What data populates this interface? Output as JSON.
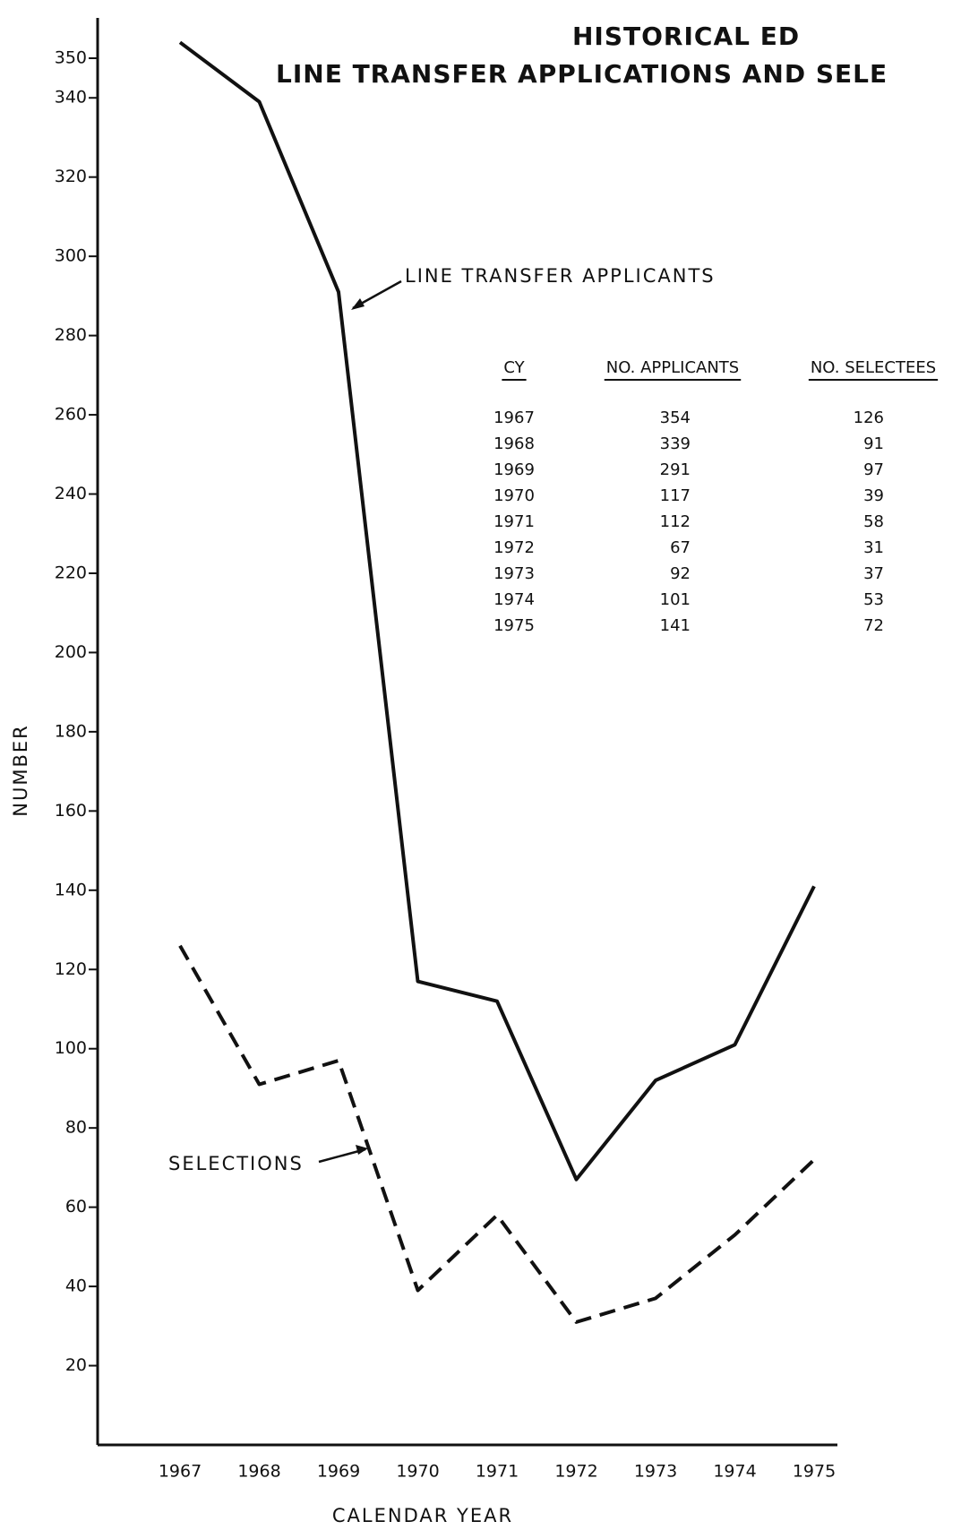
{
  "chart_data": {
    "type": "line",
    "title_lines": [
      "HISTORICAL ED",
      "LINE TRANSFER APPLICATIONS AND SELE"
    ],
    "x_label": "CALENDAR YEAR",
    "y_label": "NUMBER",
    "categories": [
      "1967",
      "1968",
      "1969",
      "1970",
      "1971",
      "1972",
      "1973",
      "1974",
      "1975"
    ],
    "series": [
      {
        "name": "LINE TRANSFER APPLICANTS",
        "color": "#111111",
        "line_style": "solid",
        "values": [
          354,
          339,
          291,
          117,
          112,
          67,
          92,
          101,
          141
        ]
      },
      {
        "name": "SELECTIONS",
        "color": "#111111",
        "line_style": "dashed",
        "values": [
          126,
          91,
          97,
          39,
          58,
          31,
          37,
          53,
          72
        ]
      }
    ],
    "ylim": [
      0,
      350
    ],
    "yticks": [
      20,
      40,
      60,
      80,
      100,
      120,
      140,
      160,
      180,
      200,
      220,
      240,
      260,
      280,
      300,
      320,
      340,
      350
    ],
    "grid": false,
    "table_columns": [
      "CY",
      "NO. APPLICANTS",
      "NO. SELECTEES"
    ]
  }
}
